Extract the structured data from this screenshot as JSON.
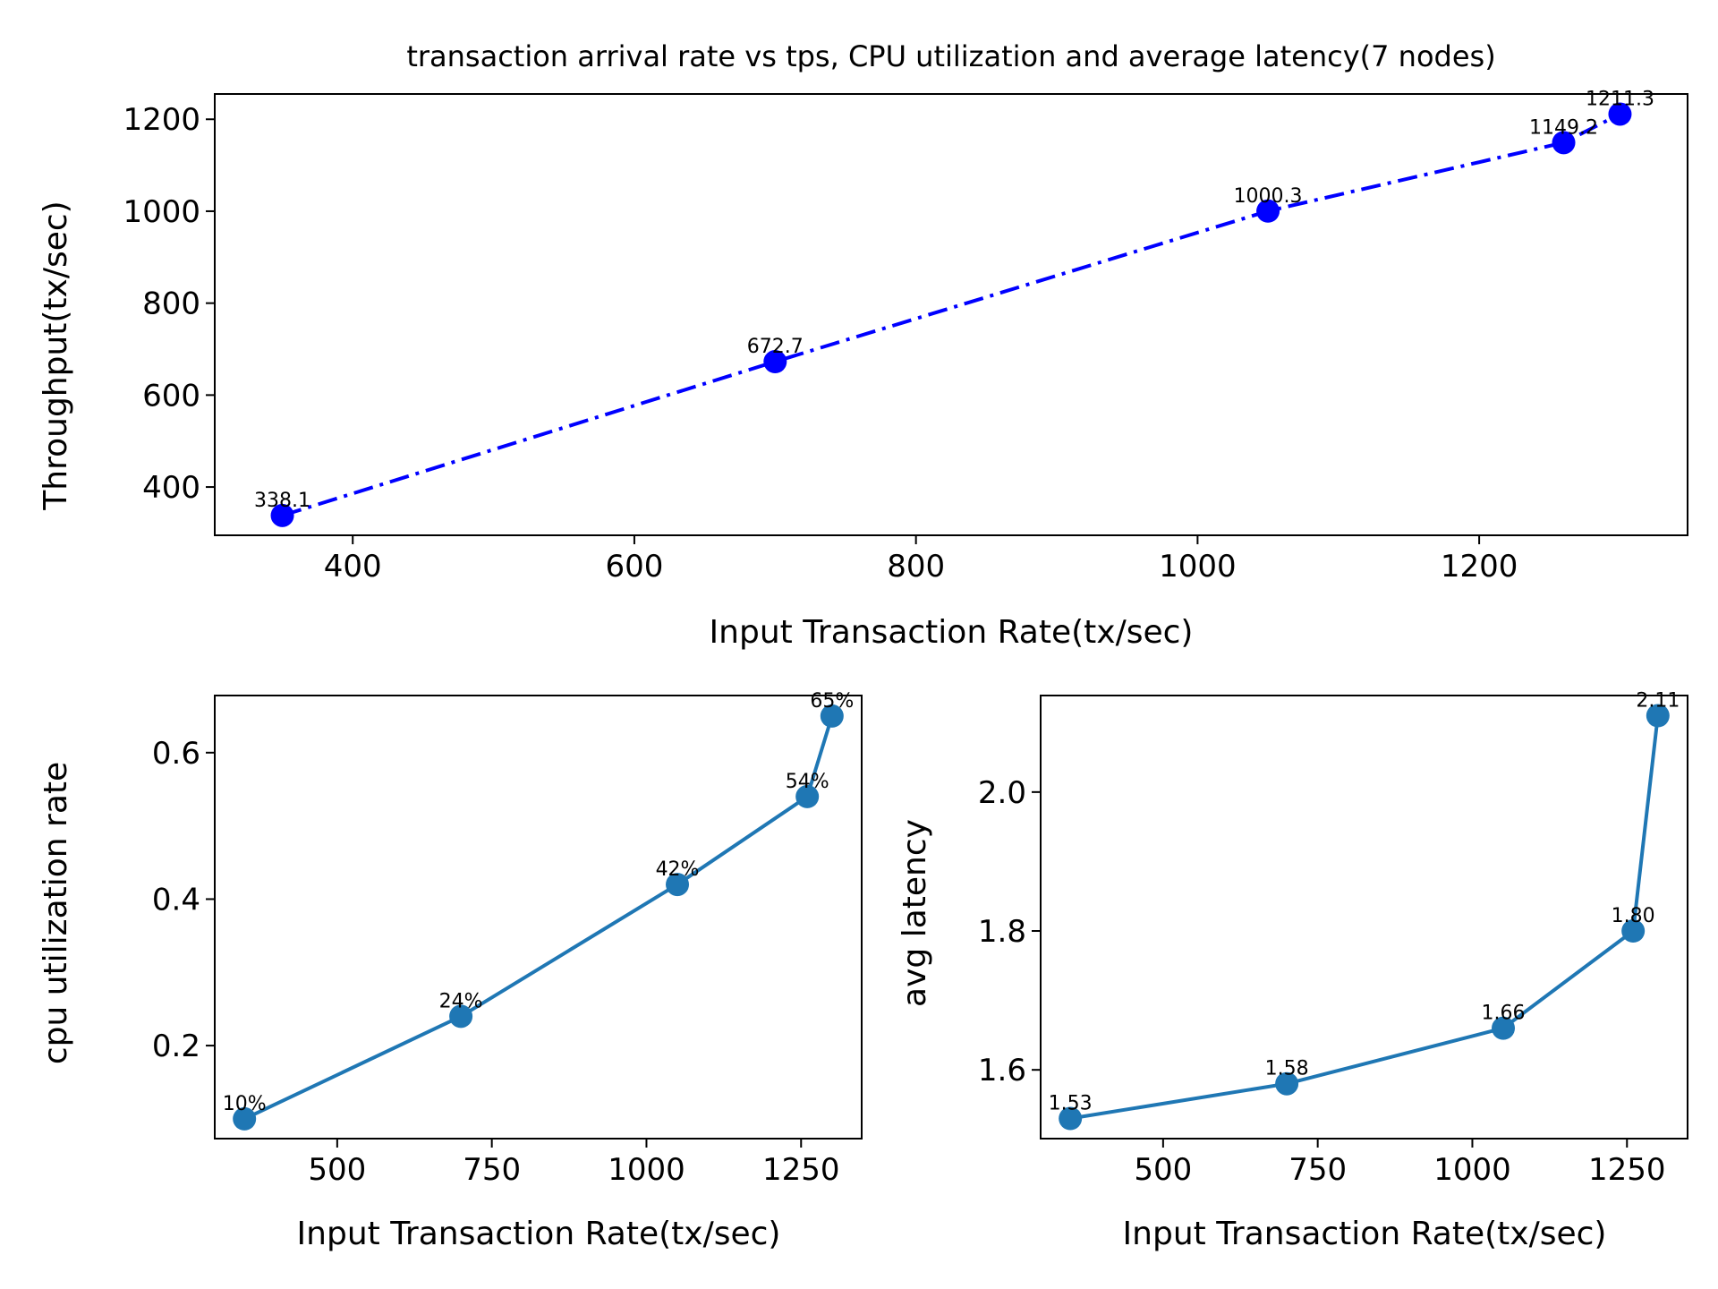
{
  "chart_data": [
    {
      "type": "line",
      "title": "transaction arrival rate vs tps, CPU utilization and average latency(7 nodes)",
      "xlabel": "Input Transaction Rate(tx/sec)",
      "ylabel": "Throughput(tx/sec)",
      "x": [
        350,
        700,
        1050,
        1260,
        1300
      ],
      "values": [
        338.1,
        672.7,
        1000.3,
        1149.2,
        1211.3
      ],
      "data_labels": [
        "338.1",
        "672.7",
        "1000.3",
        "1149.2",
        "1211.3"
      ],
      "xlim": [
        302,
        1348
      ],
      "ylim": [
        295,
        1255
      ],
      "xticks": [
        400,
        600,
        800,
        1000,
        1200
      ],
      "xtick_labels": [
        "400",
        "600",
        "800",
        "1000",
        "1200"
      ],
      "yticks": [
        400,
        600,
        800,
        1000,
        1200
      ],
      "ytick_labels": [
        "400",
        "600",
        "800",
        "1000",
        "1200"
      ],
      "line_style": "dashdot",
      "color": "#0000ff",
      "grid": false
    },
    {
      "type": "line",
      "title": "",
      "xlabel": "Input Transaction Rate(tx/sec)",
      "ylabel": "cpu utilization rate",
      "x": [
        350,
        700,
        1050,
        1260,
        1300
      ],
      "values": [
        0.1,
        0.24,
        0.42,
        0.54,
        0.65
      ],
      "data_labels": [
        "10%",
        "24%",
        "42%",
        "54%",
        "65%"
      ],
      "xlim": [
        302,
        1348
      ],
      "ylim": [
        0.073,
        0.678
      ],
      "xticks": [
        500,
        750,
        1000,
        1250
      ],
      "xtick_labels": [
        "500",
        "750",
        "1000",
        "1250"
      ],
      "yticks": [
        0.2,
        0.4,
        0.6
      ],
      "ytick_labels": [
        "0.2",
        "0.4",
        "0.6"
      ],
      "line_style": "solid",
      "color": "#1f77b4",
      "grid": false
    },
    {
      "type": "line",
      "title": "",
      "xlabel": "Input Transaction Rate(tx/sec)",
      "ylabel": "avg latency",
      "x": [
        350,
        700,
        1050,
        1260,
        1300
      ],
      "values": [
        1.53,
        1.58,
        1.66,
        1.8,
        2.11
      ],
      "data_labels": [
        "1.53",
        "1.58",
        "1.66",
        "1.80",
        "2.11"
      ],
      "xlim": [
        302,
        1348
      ],
      "ylim": [
        1.501,
        2.139
      ],
      "xticks": [
        500,
        750,
        1000,
        1250
      ],
      "xtick_labels": [
        "500",
        "750",
        "1000",
        "1250"
      ],
      "yticks": [
        1.6,
        1.8,
        2.0
      ],
      "ytick_labels": [
        "1.6",
        "1.8",
        "2.0"
      ],
      "line_style": "solid",
      "color": "#1f77b4",
      "grid": false
    }
  ]
}
